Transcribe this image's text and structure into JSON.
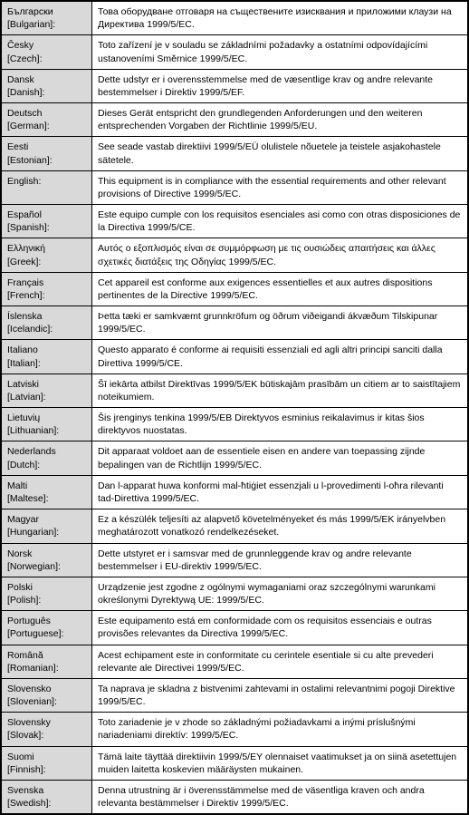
{
  "table": {
    "lang_col_width": 100,
    "text_col_width": 418,
    "lang_bg": "#d9d9d9",
    "text_bg": "#ffffff",
    "border_color": "#000000",
    "font_size": 10.5,
    "rows": [
      {
        "lang_native": "Български",
        "lang_en": "[Bulgarian]:",
        "text": "Това оборудване отговаря на съществените изисквания и приложими клаузи на Директива 1999/5/EC."
      },
      {
        "lang_native": "Česky",
        "lang_en": "[Czech]:",
        "text": "Toto zařízení je v souladu se základními požadavky a ostatními odpovídajícími ustanoveními Směrnice 1999/5/EC."
      },
      {
        "lang_native": "Dansk",
        "lang_en": "[Danish]:",
        "text": "Dette udstyr er i overensstemmelse med de væsentlige krav og andre relevante bestemmelser i Direktiv 1999/5/EF."
      },
      {
        "lang_native": "Deutsch",
        "lang_en": "[German]:",
        "text": "Dieses Gerät entspricht den grundlegenden Anforderungen und den weiteren entsprechenden Vorgaben der Richtlinie 1999/5/EU."
      },
      {
        "lang_native": "Eesti",
        "lang_en": "[Estonian]:",
        "text": "See seade vastab direktiivi 1999/5/EÜ olulistele nõuetele ja teistele asjakohastele sätetele."
      },
      {
        "lang_native": "English:",
        "lang_en": "",
        "text": "This equipment is in compliance with the essential requirements and other relevant provisions of Directive 1999/5/EC."
      },
      {
        "lang_native": "Español",
        "lang_en": "[Spanish]:",
        "text": "Este equipo cumple con los requisitos esenciales asi como con otras disposiciones de la Directiva 1999/5/CE."
      },
      {
        "lang_native": "Ελληνική",
        "lang_en": "[Greek]:",
        "text": "Αυτός ο εξοπλισμός είναι σε συμμόρφωση με τις ουσιώδεις απαιτήσεις και άλλες σχετικές διατάξεις της Οδηγίας 1999/5/EC."
      },
      {
        "lang_native": "Français",
        "lang_en": "[French]:",
        "text": "Cet appareil est conforme aux exigences essentielles et aux autres dispositions pertinentes de la Directive 1999/5/EC."
      },
      {
        "lang_native": "Íslenska",
        "lang_en": "[Icelandic]:",
        "text": "Þetta tæki er samkvæmt grunnkröfum og öðrum viðeigandi ákvæðum Tilskipunar 1999/5/EC."
      },
      {
        "lang_native": "Italiano",
        "lang_en": "[Italian]:",
        "text": "Questo apparato é conforme ai requisiti essenziali ed agli altri principi sanciti dalla Direttiva 1999/5/CE."
      },
      {
        "lang_native": "Latviski",
        "lang_en": "[Latvian]:",
        "text": "Šī iekārta atbilst Direktīvas 1999/5/EK būtiskajām prasībām un citiem ar to saistītajiem noteikumiem."
      },
      {
        "lang_native": "Lietuvių",
        "lang_en": "[Lithuanian]:",
        "text": "Šis įrenginys tenkina 1999/5/EB Direktyvos esminius reikalavimus ir kitas šios direktyvos nuostatas."
      },
      {
        "lang_native": "Nederlands",
        "lang_en": "[Dutch]:",
        "text": "Dit apparaat voldoet aan de essentiele eisen en andere van toepassing zijnde bepalingen van de Richtlijn 1999/5/EC."
      },
      {
        "lang_native": "Malti",
        "lang_en": "[Maltese]:",
        "text": "Dan l-apparat huwa konformi mal-ħtiġiet essenzjali u l-provedimenti l-oħra rilevanti tad-Direttiva 1999/5/EC."
      },
      {
        "lang_native": "Magyar",
        "lang_en": "[Hungarian]:",
        "text": "Ez a készülék teljesíti az alapvető követelményeket és más 1999/5/EK irányelvben meghatározott vonatkozó rendelkezéseket."
      },
      {
        "lang_native": "Norsk",
        "lang_en": "[Norwegian]:",
        "text": "Dette utstyret er i samsvar med de grunnleggende krav og andre relevante bestemmelser i EU-direktiv 1999/5/EC."
      },
      {
        "lang_native": "Polski",
        "lang_en": "[Polish]:",
        "text": "Urządzenie jest zgodne z ogólnymi wymaganiami oraz szczególnymi warunkami określonymi Dyrektywą UE: 1999/5/EC."
      },
      {
        "lang_native": "Português",
        "lang_en": "[Portuguese]:",
        "text": "Este equipamento está em conformidade com os requisitos essenciais e outras provisões relevantes da Directiva 1999/5/EC."
      },
      {
        "lang_native": "Română",
        "lang_en": "[Romanian]:",
        "text": "Acest echipament este in conformitate cu cerintele esentiale  si cu alte prevederi relevante ale Directivei 1999/5/EC."
      },
      {
        "lang_native": "Slovensko",
        "lang_en": "[Slovenian]:",
        "text": "Ta naprava je skladna z bistvenimi zahtevami in ostalimi relevantnimi pogoji Direktive 1999/5/EC."
      },
      {
        "lang_native": "Slovensky",
        "lang_en": "[Slovak]:",
        "text": "Toto zariadenie je v zhode so základnými požiadavkami a inými príslušnými nariadeniami direktív: 1999/5/EC."
      },
      {
        "lang_native": "Suomi",
        "lang_en": "[Finnish]:",
        "text": "Tämä laite täyttää direktiivin 1999/5/EY olennaiset vaatimukset ja on siinä asetettujen muiden laitetta koskevien määräysten mukainen."
      },
      {
        "lang_native": "Svenska",
        "lang_en": "[Swedish]:",
        "text": "Denna utrustning är i överensstämmelse med de väsentliga kraven och  andra relevanta  bestämmelser i Direktiv 1999/5/EC."
      }
    ]
  }
}
